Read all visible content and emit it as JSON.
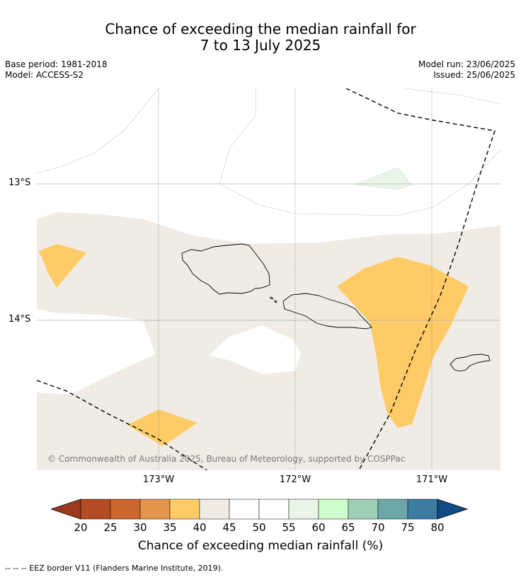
{
  "title": {
    "line1": "Chance of exceeding the median rainfall for",
    "line2": "7 to 13 July 2025"
  },
  "meta": {
    "base_period": "Base period: 1981-2018",
    "model": "Model: ACCESS-S2",
    "model_run": "Model run: 23/06/2025",
    "issued": "Issued: 25/06/2025"
  },
  "map": {
    "lat_labels": [
      "13°S",
      "14°S"
    ],
    "lon_labels": [
      "173°W",
      "172°W",
      "171°W"
    ],
    "copyright": "© Commonwealth of Australia 2025, Bureau of Meteorology, supported by COSPPac",
    "colors": {
      "neutral_40_45": "#f0ebe5",
      "class_35_40": "#fecb66",
      "class_55_60": "#e8f5e8",
      "coastline": "#000000",
      "eez": "#000000"
    }
  },
  "colorbar": {
    "ticks": [
      "20",
      "25",
      "30",
      "35",
      "40",
      "45",
      "50",
      "55",
      "60",
      "65",
      "70",
      "75",
      "80"
    ],
    "colors": [
      "#9c3a1e",
      "#b34c25",
      "#cc6631",
      "#e0954a",
      "#fecb66",
      "#f0ebe5",
      "#ffffff",
      "#ffffff",
      "#e8f5e8",
      "#ccffcc",
      "#9dcfb7",
      "#6da6a9",
      "#3d7ba0",
      "#124a86"
    ],
    "label": "Chance of exceeding median rainfall (%)"
  },
  "footnote": "--  --  -- EEZ border V11 (Flanders Marine Institute, 2019)."
}
